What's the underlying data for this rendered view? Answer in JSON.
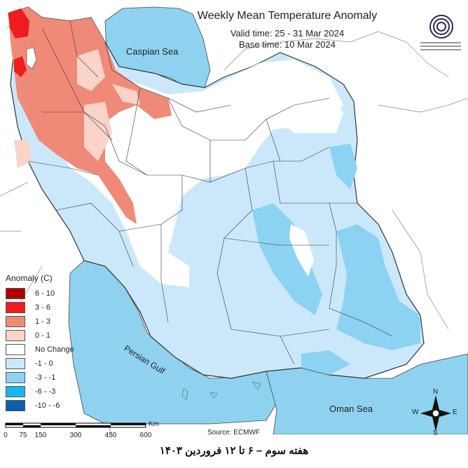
{
  "header": {
    "title": "Weekly Mean Temperature Anomaly",
    "valid_time": "Valid time: 25 - 31 Mar 2024",
    "base_time": "Base time: 10 Mar 2024"
  },
  "legend": {
    "title": "Anomaly (C)",
    "items": [
      {
        "label": "6 - 10",
        "color": "#b00000"
      },
      {
        "label": "3 - 6",
        "color": "#ee1c1c"
      },
      {
        "label": "1 - 3",
        "color": "#f08a78"
      },
      {
        "label": "0 - 1",
        "color": "#fbd3c8"
      },
      {
        "label": "No Change",
        "color": "#ffffff"
      },
      {
        "label": "-1 - 0",
        "color": "#cbe8fb"
      },
      {
        "label": "-3 - -1",
        "color": "#8cd2f2"
      },
      {
        "label": "-6 - -3",
        "color": "#14b8ee"
      },
      {
        "label": "-10 - -6",
        "color": "#0a5fb0"
      }
    ]
  },
  "labels": {
    "caspian": "Caspian Sea",
    "persian_gulf": "Persian Gulf",
    "oman_sea": "Oman Sea"
  },
  "compass": {
    "n": "N",
    "s": "S",
    "e": "E",
    "w": "W"
  },
  "scale": {
    "unit": "Km",
    "ticks": [
      "0",
      "75",
      "150",
      "300",
      "450",
      "600"
    ]
  },
  "source": "Source: ECMWF",
  "caption": "هفته سوم – ۶ تا ۱۲ فروردین ۱۴۰۳",
  "colors": {
    "water": "#8fd2f0",
    "outer_land": "#ffffff",
    "border": "#333333"
  }
}
